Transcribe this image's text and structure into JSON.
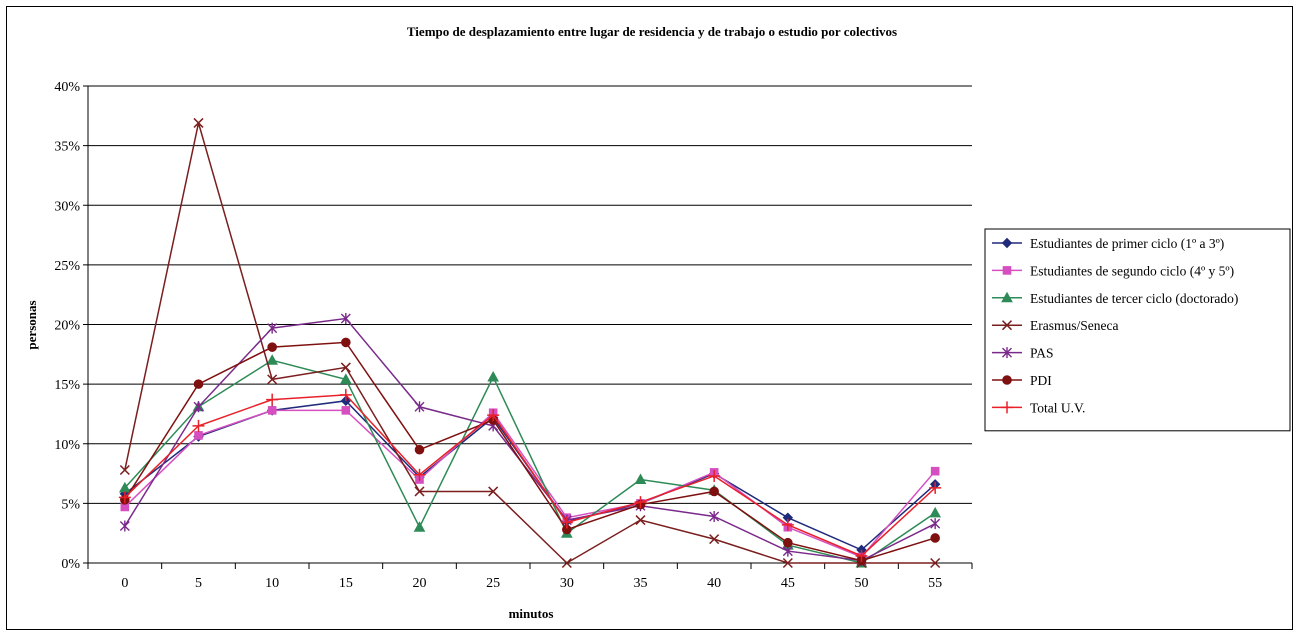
{
  "chart_data": {
    "type": "line",
    "title": "Tiempo de desplazamiento entre lugar de residencia y de trabajo o estudio por colectivos",
    "xlabel": "minutos",
    "ylabel": "personas",
    "x": [
      0,
      5,
      10,
      15,
      20,
      25,
      30,
      35,
      40,
      45,
      50,
      55
    ],
    "x_tick_labels": [
      "0",
      "5",
      "10",
      "15",
      "20",
      "25",
      "30",
      "35",
      "40",
      "45",
      "50",
      "55"
    ],
    "ylim": [
      0,
      40
    ],
    "y_tick_labels": [
      "0%",
      "5%",
      "10%",
      "15%",
      "20%",
      "25%",
      "30%",
      "35%",
      "40%"
    ],
    "y_ticks": [
      0,
      5,
      10,
      15,
      20,
      25,
      30,
      35,
      40
    ],
    "grid": "horizontal",
    "legend_position": "right",
    "series": [
      {
        "name": "Estudiantes de primer ciclo (1º a 3º)",
        "color": "#1f2a7a",
        "marker": "diamond",
        "values": [
          5.8,
          10.6,
          12.8,
          13.6,
          7.2,
          12.2,
          3.5,
          5.0,
          7.5,
          3.8,
          1.1,
          6.6
        ]
      },
      {
        "name": "Estudiantes de segundo ciclo (4º y 5º)",
        "color": "#d64fc0",
        "marker": "square",
        "values": [
          4.7,
          10.7,
          12.8,
          12.8,
          7.0,
          12.6,
          3.8,
          5.0,
          7.6,
          3.0,
          0.5,
          7.7
        ]
      },
      {
        "name": "Estudiantes de tercer ciclo (doctorado)",
        "color": "#2e8b57",
        "marker": "triangle",
        "values": [
          6.3,
          13.1,
          17.0,
          15.4,
          3.0,
          15.6,
          2.5,
          7.0,
          6.1,
          1.5,
          0.0,
          4.2
        ]
      },
      {
        "name": "Erasmus/Seneca",
        "color": "#7a1e1e",
        "marker": "x",
        "values": [
          7.8,
          36.9,
          15.4,
          16.4,
          6.0,
          6.0,
          0.0,
          3.6,
          2.0,
          0.0,
          0.0,
          0.0
        ]
      },
      {
        "name": "PAS",
        "color": "#7a2a8a",
        "marker": "star",
        "values": [
          3.1,
          13.1,
          19.7,
          20.5,
          13.1,
          11.5,
          3.6,
          4.8,
          3.9,
          1.0,
          0.2,
          3.3
        ]
      },
      {
        "name": "PDI",
        "color": "#7f1010",
        "marker": "circle",
        "values": [
          5.3,
          15.0,
          18.1,
          18.5,
          9.5,
          12.0,
          2.8,
          4.9,
          6.0,
          1.7,
          0.2,
          2.1
        ]
      },
      {
        "name": "Total U.V.",
        "color": "#e8202a",
        "marker": "plus",
        "values": [
          5.5,
          11.5,
          13.7,
          14.1,
          7.4,
          12.4,
          3.4,
          5.1,
          7.3,
          3.2,
          0.6,
          6.3
        ]
      }
    ]
  }
}
